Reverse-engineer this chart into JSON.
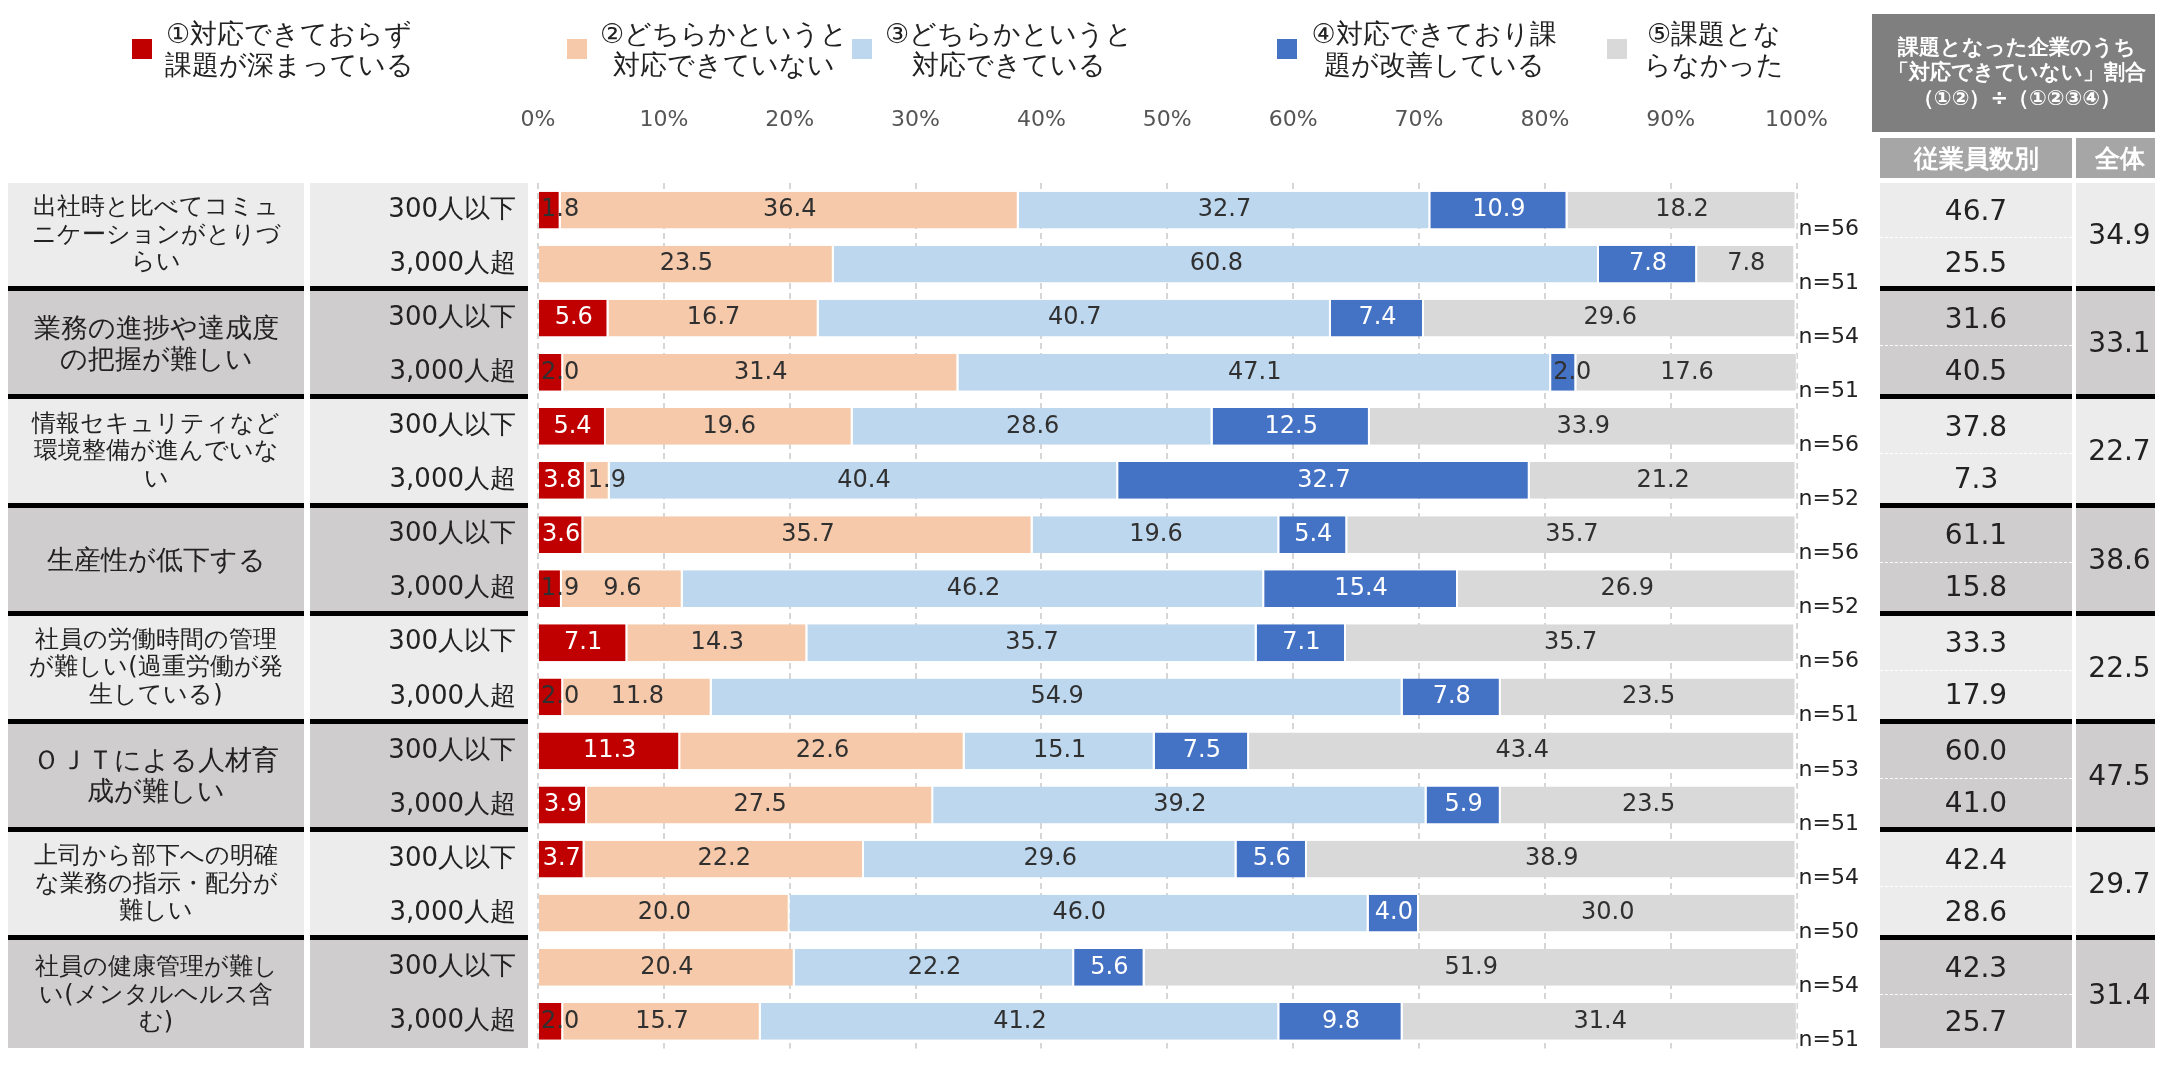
{
  "chart_data": {
    "type": "bar",
    "orientation": "horizontal",
    "stacked": true,
    "grid": "x",
    "legend": "top",
    "categories": [
      "300人以下",
      "3,000人超",
      "300人以下",
      "3,000人超",
      "300人以下",
      "3,000人超",
      "300人以下",
      "3,000人超",
      "300人以下",
      "3,000人超",
      "300人以下",
      "3,000人超",
      "300人以下",
      "3,000人超",
      "300人以下",
      "3,000人超"
    ],
    "xlim": [
      0,
      100
    ],
    "xticks": [
      {
        "value": 0,
        "label": "0%"
      },
      {
        "value": 10,
        "label": "10%"
      },
      {
        "value": 20,
        "label": "20%"
      },
      {
        "value": 30,
        "label": "30%"
      },
      {
        "value": 40,
        "label": "40%"
      },
      {
        "value": 50,
        "label": "50%"
      },
      {
        "value": 60,
        "label": "60%"
      },
      {
        "value": 70,
        "label": "70%"
      },
      {
        "value": 80,
        "label": "80%"
      },
      {
        "value": 90,
        "label": "90%"
      },
      {
        "value": 100,
        "label": "100%"
      }
    ],
    "series": [
      {
        "name": "①対応できておらず課題が深まっている",
        "color": "#c00000",
        "values": [
          1.8,
          0.0,
          5.6,
          2.0,
          5.4,
          3.8,
          3.6,
          1.9,
          7.1,
          2.0,
          11.3,
          3.9,
          3.7,
          0.0,
          0.0,
          2.0
        ],
        "value_labels": [
          "1.8",
          null,
          "5.6",
          "2.0",
          "5.4",
          "3.8",
          "3.6",
          "1.9",
          "7.1",
          "2.0",
          "11.3",
          "3.9",
          "3.7",
          null,
          null,
          "2.0"
        ]
      },
      {
        "name": "②どちらかというと対応できていない",
        "color": "#f5c9aa",
        "values": [
          36.4,
          23.5,
          16.7,
          31.4,
          19.6,
          1.9,
          35.7,
          9.6,
          14.3,
          11.8,
          22.6,
          27.5,
          22.2,
          20.0,
          20.4,
          15.7
        ],
        "value_labels": [
          "36.4",
          "23.5",
          "16.7",
          "31.4",
          "19.6",
          "1.9",
          "35.7",
          "9.6",
          "14.3",
          "11.8",
          "22.6",
          "27.5",
          "22.2",
          "20.0",
          "20.4",
          "15.7"
        ]
      },
      {
        "name": "③どちらかというと対応できている",
        "color": "#bdd7ee",
        "values": [
          32.7,
          60.8,
          40.7,
          47.1,
          28.6,
          40.4,
          19.6,
          46.2,
          35.7,
          54.9,
          15.1,
          39.2,
          29.6,
          46.0,
          22.2,
          41.2
        ],
        "value_labels": [
          "32.7",
          "60.8",
          "40.7",
          "47.1",
          "28.6",
          "40.4",
          "19.6",
          "46.2",
          "35.7",
          "54.9",
          "15.1",
          "39.2",
          "29.6",
          "46.0",
          "22.2",
          "41.2"
        ]
      },
      {
        "name": "④対応できており課題が改善している",
        "color": "#4472c4",
        "values": [
          10.9,
          7.8,
          7.4,
          2.0,
          12.5,
          32.7,
          5.4,
          15.4,
          7.1,
          7.8,
          7.5,
          5.9,
          5.6,
          4.0,
          5.6,
          9.8
        ],
        "value_labels": [
          "10.9",
          "7.8",
          "7.4",
          "2.0",
          "12.5",
          "32.7",
          "5.4",
          "15.4",
          "7.1",
          "7.8",
          "7.5",
          "5.9",
          "5.6",
          "4.0",
          "5.6",
          "9.8"
        ]
      },
      {
        "name": "⑤課題とならなかった",
        "color": "#d9d9d9",
        "values": [
          18.2,
          7.8,
          29.6,
          17.6,
          33.9,
          21.2,
          35.7,
          26.9,
          35.7,
          23.5,
          43.4,
          23.5,
          38.9,
          30.0,
          51.9,
          31.4
        ],
        "value_labels": [
          "18.2",
          "7.8",
          "29.6",
          "17.6",
          "33.9",
          "21.2",
          "35.7",
          "26.9",
          "35.7",
          "23.5",
          "43.4",
          "23.5",
          "38.9",
          "30.0",
          "51.9",
          "31.4"
        ]
      }
    ],
    "annotations": [
      "出社時と比べてコミュニケーションがとりづらい",
      "業務の進捗や達成度の把握が難しい",
      "情報セキュリティなど環境整備が進んでいない",
      "生産性が低下する",
      "社員の労働時間の管理が難しい(過重労働が発生している)",
      "ＯＪＴによる人材育成が難しい",
      "上司から部下への明確な業務の指示・配分が難しい",
      "社員の健康管理が難しい(メンタルヘルス含む)",
      "n=56",
      "n=51",
      "n=54",
      "n=51",
      "n=56",
      "n=52",
      "n=56",
      "n=52",
      "n=56",
      "n=51",
      "n=53",
      "n=51",
      "n=54",
      "n=50",
      "n=54",
      "n=51",
      "課題となった企業のうち「対応できていない」割合（①②）÷（①②③④）",
      "従業員数別",
      "全体",
      "46.7",
      "25.5",
      "31.6",
      "40.5",
      "37.8",
      "7.3",
      "61.1",
      "15.8",
      "33.3",
      "17.9",
      "60.0",
      "41.0",
      "42.4",
      "28.6",
      "42.3",
      "25.7",
      "34.9",
      "33.1",
      "22.7",
      "38.6",
      "22.5",
      "47.5",
      "29.7",
      "31.4"
    ]
  }
}
